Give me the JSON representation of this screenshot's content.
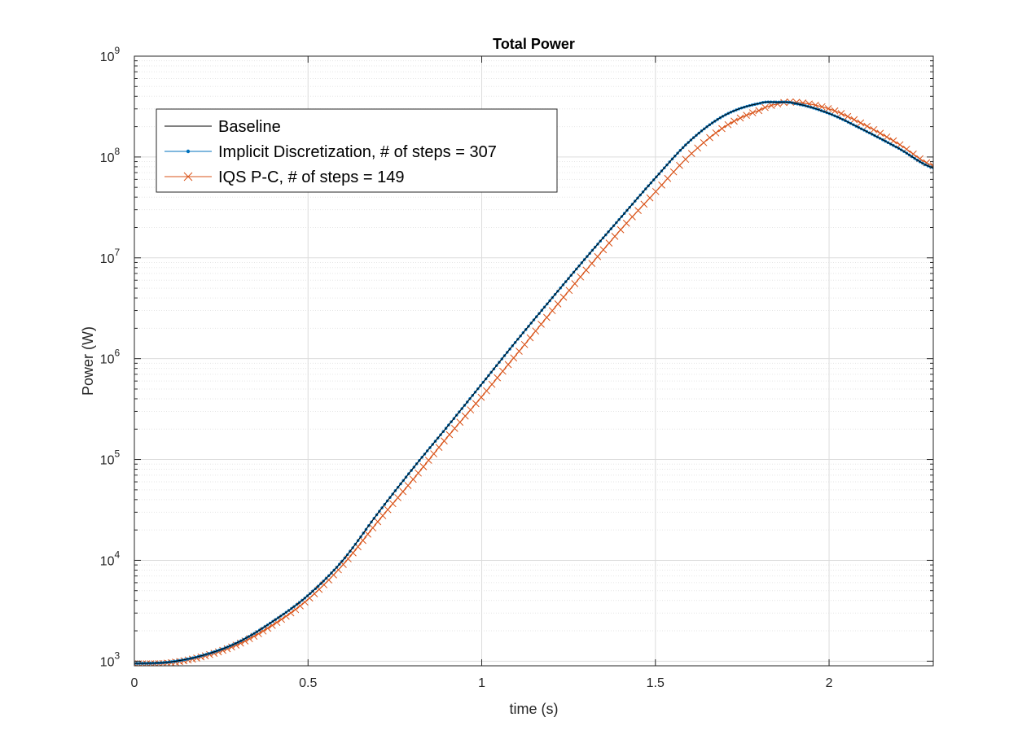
{
  "chart_data": {
    "type": "line",
    "title": "Total Power",
    "xlabel": "time (s)",
    "ylabel": "Power (W)",
    "xlim": [
      0,
      2.3
    ],
    "ylim": [
      900,
      1000000000
    ],
    "yscale": "log",
    "grid": true,
    "legend_position": "top-left",
    "x_ticks": [
      {
        "value": 0,
        "label": "0"
      },
      {
        "value": 0.5,
        "label": "0.5"
      },
      {
        "value": 1,
        "label": "1"
      },
      {
        "value": 1.5,
        "label": "1.5"
      },
      {
        "value": 2,
        "label": "2"
      }
    ],
    "y_ticks": [
      {
        "value": 1000,
        "base": "10",
        "exp": "3"
      },
      {
        "value": 10000,
        "base": "10",
        "exp": "4"
      },
      {
        "value": 100000,
        "base": "10",
        "exp": "5"
      },
      {
        "value": 1000000,
        "base": "10",
        "exp": "6"
      },
      {
        "value": 10000000,
        "base": "10",
        "exp": "7"
      },
      {
        "value": 100000000,
        "base": "10",
        "exp": "8"
      },
      {
        "value": 1000000000,
        "base": "10",
        "exp": "9"
      }
    ],
    "series": [
      {
        "name": "Baseline",
        "color": "#000000",
        "marker": "none",
        "x": [
          0,
          0.1,
          0.2,
          0.3,
          0.4,
          0.5,
          0.6,
          0.7,
          0.8,
          0.9,
          1.0,
          1.1,
          1.2,
          1.3,
          1.4,
          1.5,
          1.6,
          1.7,
          1.8,
          1.85,
          1.9,
          2.0,
          2.1,
          2.2,
          2.3
        ],
        "y": [
          950,
          980,
          1150,
          1550,
          2500,
          4500,
          10000,
          29000,
          80000,
          210000,
          560000,
          1500000,
          3900000,
          10000000,
          25000000,
          62000000,
          145000000,
          260000000,
          340000000,
          350000000,
          340000000,
          270000000,
          185000000,
          122000000,
          78000000
        ]
      },
      {
        "name": "Implicit Discretization, # of steps = 307",
        "color": "#0072BD",
        "marker": "dot",
        "steps": 307,
        "x": [
          0,
          0.1,
          0.2,
          0.3,
          0.4,
          0.5,
          0.6,
          0.7,
          0.8,
          0.9,
          1.0,
          1.1,
          1.2,
          1.3,
          1.4,
          1.5,
          1.6,
          1.7,
          1.8,
          1.85,
          1.9,
          2.0,
          2.1,
          2.2,
          2.3
        ],
        "y": [
          950,
          980,
          1150,
          1550,
          2500,
          4500,
          10000,
          29000,
          80000,
          210000,
          560000,
          1500000,
          3900000,
          10000000,
          25000000,
          62000000,
          145000000,
          260000000,
          340000000,
          350000000,
          340000000,
          270000000,
          185000000,
          122000000,
          78000000
        ]
      },
      {
        "name": "IQS P-C, # of steps = 149",
        "color": "#D95319",
        "marker": "x",
        "steps": 149,
        "x": [
          0,
          0.1,
          0.2,
          0.3,
          0.4,
          0.5,
          0.6,
          0.7,
          0.8,
          0.9,
          1.0,
          1.1,
          1.2,
          1.3,
          1.4,
          1.5,
          1.6,
          1.7,
          1.8,
          1.85,
          1.9,
          2.0,
          2.1,
          2.2,
          2.3
        ],
        "y": [
          940,
          960,
          1120,
          1480,
          2300,
          4100,
          9000,
          24000,
          62000,
          165000,
          420000,
          1100000,
          2900000,
          7500000,
          19000000,
          45000000,
          105000000,
          200000000,
          290000000,
          335000000,
          350000000,
          300000000,
          210000000,
          135000000,
          82000000
        ]
      }
    ]
  }
}
